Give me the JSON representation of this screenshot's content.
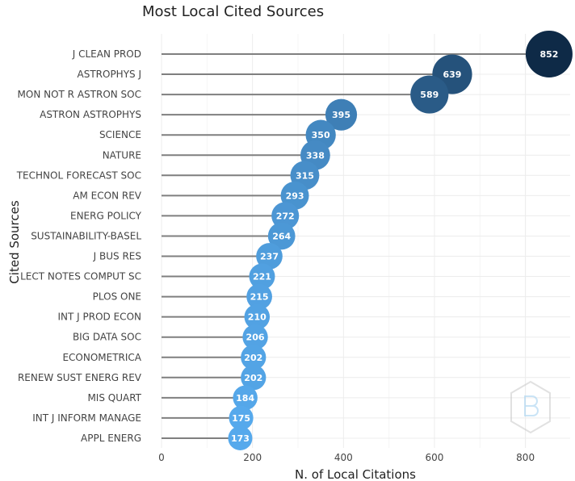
{
  "chart_data": {
    "type": "scatter",
    "title": "Most Local Cited Sources",
    "xlabel": "N. of Local Citations",
    "ylabel": "Cited Sources",
    "xlim": [
      0,
      900
    ],
    "xticks": [
      0,
      200,
      400,
      600,
      800
    ],
    "grid": true,
    "categories": [
      "J CLEAN PROD",
      "ASTROPHYS J",
      "MON NOT R ASTRON SOC",
      "ASTRON ASTROPHYS",
      "SCIENCE",
      "NATURE",
      "TECHNOL FORECAST SOC",
      "AM ECON REV",
      "ENERG POLICY",
      "SUSTAINABILITY-BASEL",
      "J BUS RES",
      "LECT NOTES COMPUT SC",
      "PLOS ONE",
      "INT J PROD ECON",
      "BIG DATA SOC",
      "ECONOMETRICA",
      "RENEW SUST ENERG REV",
      "MIS QUART",
      "INT J INFORM MANAGE",
      "APPL ENERG"
    ],
    "values": [
      852,
      639,
      589,
      395,
      350,
      338,
      315,
      293,
      272,
      264,
      237,
      221,
      215,
      210,
      206,
      202,
      202,
      184,
      175,
      173
    ],
    "colors": {
      "stem": "#7f7f7f",
      "low": "#56a9ec",
      "high": "#0e2a47"
    }
  }
}
